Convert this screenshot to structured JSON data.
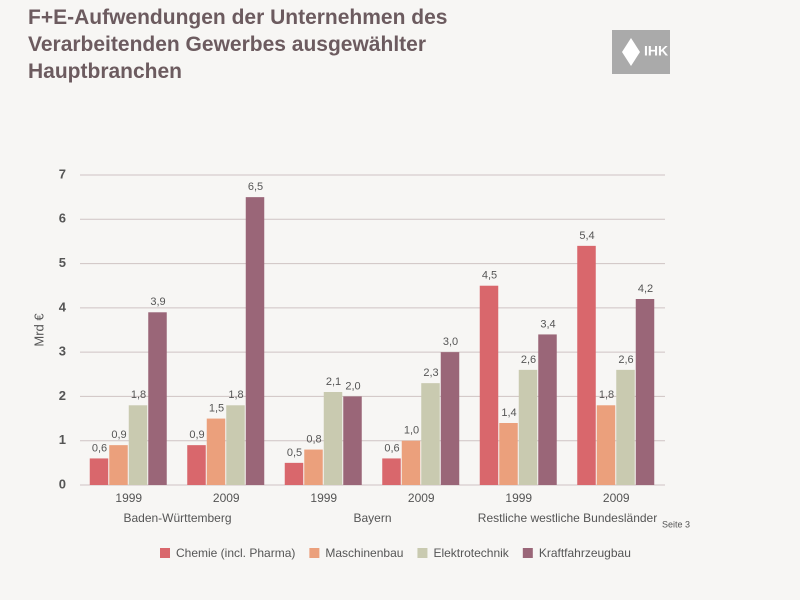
{
  "chart_data": {
    "type": "bar",
    "title": "F+E-Aufwendungen der Unternehmen des Verarbeitenden Gewerbes ausgewählter Hauptbranchen",
    "logo": "IHK",
    "footer": "Seite 3",
    "y_label": "Mrd €",
    "categories": [
      "1999",
      "2009",
      "1999",
      "2009",
      "1999",
      "2009"
    ],
    "groups": [
      "Baden-Württemberg",
      "Bayern",
      "Restliche westliche Bundesländer"
    ],
    "series": [
      {
        "name": "Chemie (incl. Pharma)",
        "color": "#d9676c",
        "values": [
          0.6,
          0.9,
          0.5,
          0.6,
          4.5,
          5.4
        ],
        "value_labels": [
          "0,6",
          "0,9",
          "0,5",
          "0,6",
          "4,5",
          "5,4"
        ]
      },
      {
        "name": "Maschinenbau",
        "color": "#eba07c",
        "values": [
          0.9,
          1.5,
          0.8,
          1.0,
          1.4,
          1.8
        ],
        "value_labels": [
          "0,9",
          "1,5",
          "0,8",
          "1,0",
          "1,4",
          "1,8"
        ]
      },
      {
        "name": "Elektrotechnik",
        "color": "#c9cab0",
        "values": [
          1.8,
          1.8,
          2.1,
          2.3,
          2.6,
          2.6
        ],
        "value_labels": [
          "1,8",
          "1,8",
          "2,1",
          "2,3",
          "2,6",
          "2,6"
        ]
      },
      {
        "name": "Kraftfahrzeugbau",
        "color": "#9a6678",
        "values": [
          3.9,
          6.5,
          2.0,
          3.0,
          3.4,
          4.2
        ],
        "value_labels": [
          "3,9",
          "6,5",
          "2,0",
          "3,0",
          "3,4",
          "4,2"
        ]
      }
    ],
    "ylim": [
      0,
      7
    ],
    "yticks": [
      0,
      1,
      2,
      3,
      4,
      5,
      6,
      7
    ],
    "grid": true
  }
}
